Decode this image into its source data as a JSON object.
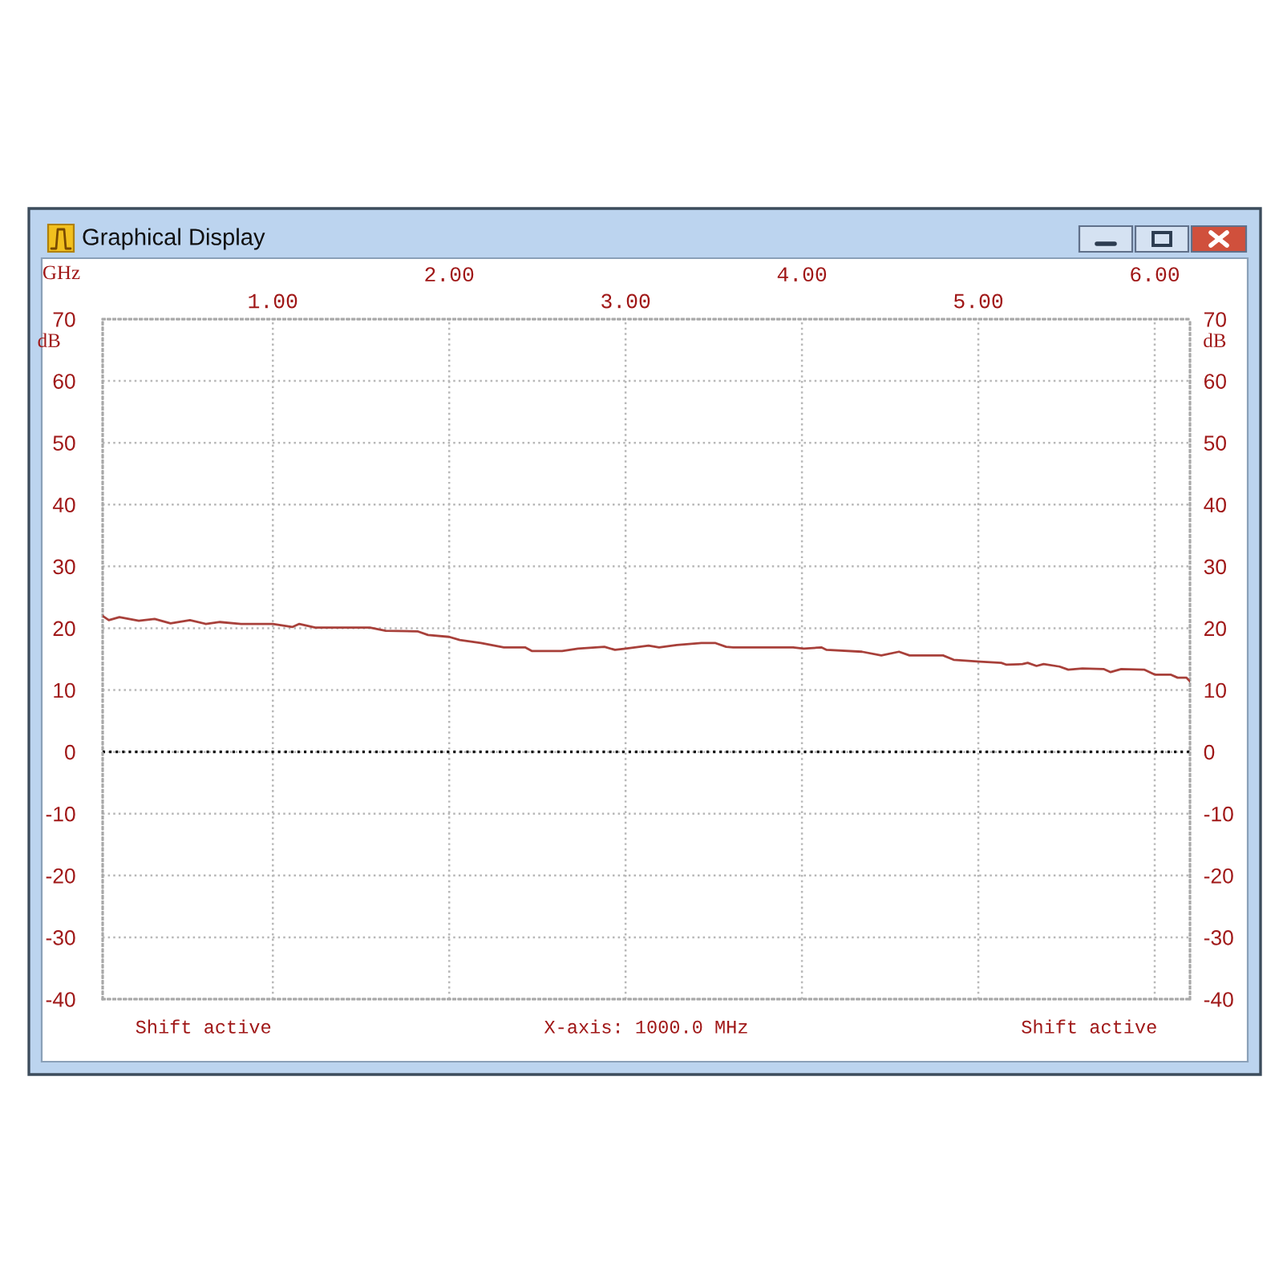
{
  "chart_data": {
    "type": "line",
    "title": "Graphical Display",
    "xlabel": "GHz",
    "ylabel": "dB",
    "y2label": "dB",
    "xlim": [
      0.035,
      6.2
    ],
    "xticks": [
      {
        "value": 1,
        "label": "1.00"
      },
      {
        "value": 2,
        "label": null
      },
      {
        "value": 3,
        "label": "3.00"
      },
      {
        "value": 4,
        "label": null
      },
      {
        "value": 5,
        "label": "5.00"
      },
      {
        "value": 6,
        "label": null
      }
    ],
    "x2lim": [
      0.035,
      6.2
    ],
    "x2ticks": [
      {
        "value": 1,
        "label": null
      },
      {
        "value": 2,
        "label": "2.00"
      },
      {
        "value": 3,
        "label": null
      },
      {
        "value": 4,
        "label": "4.00"
      },
      {
        "value": 5,
        "label": null
      },
      {
        "value": 6,
        "label": "6.00"
      }
    ],
    "ylim": [
      -40,
      70
    ],
    "yticks": [
      -40,
      -30,
      -20,
      -10,
      0,
      10,
      20,
      30,
      40,
      50,
      60,
      70
    ],
    "y2lim": [
      -40,
      70
    ],
    "y2ticks": [
      -40,
      -30,
      -20,
      -10,
      0,
      10,
      20,
      30,
      40,
      50,
      60,
      70
    ],
    "grid": true,
    "ref_lines": [
      {
        "axis": "y",
        "value": 0,
        "color": "#000000",
        "line_style": "dotted"
      }
    ],
    "annotations": [
      "Shift active",
      "X-axis: 1000.0 MHz",
      "Shift active"
    ],
    "series": [
      {
        "color": "#a8403a",
        "x": [
          0.035,
          0.07,
          0.13,
          0.24,
          0.33,
          0.42,
          0.53,
          0.62,
          0.7,
          0.82,
          1.0,
          1.11,
          1.15,
          1.24,
          1.55,
          1.64,
          1.82,
          1.88,
          2.0,
          2.06,
          2.18,
          2.31,
          2.43,
          2.47,
          2.64,
          2.73,
          2.88,
          2.94,
          3.0,
          3.13,
          3.19,
          3.29,
          3.43,
          3.51,
          3.57,
          3.61,
          3.95,
          4.01,
          4.11,
          4.14,
          4.34,
          4.45,
          4.55,
          4.61,
          4.8,
          4.86,
          5.01,
          5.13,
          5.16,
          5.25,
          5.28,
          5.33,
          5.37,
          5.46,
          5.51,
          5.59,
          5.71,
          5.75,
          5.81,
          5.94,
          6.0,
          6.09,
          6.13,
          6.18,
          6.2
        ],
        "values": [
          22.0,
          21.3,
          21.8,
          21.2,
          21.5,
          20.8,
          21.3,
          20.7,
          21.0,
          20.7,
          20.7,
          20.2,
          20.7,
          20.1,
          20.1,
          19.6,
          19.5,
          18.9,
          18.6,
          18.1,
          17.6,
          16.9,
          16.9,
          16.3,
          16.3,
          16.7,
          17.0,
          16.5,
          16.7,
          17.2,
          16.9,
          17.3,
          17.6,
          17.6,
          17.0,
          16.9,
          16.9,
          16.7,
          16.9,
          16.5,
          16.2,
          15.6,
          16.2,
          15.6,
          15.6,
          14.9,
          14.6,
          14.4,
          14.1,
          14.2,
          14.4,
          13.9,
          14.2,
          13.8,
          13.3,
          13.5,
          13.4,
          12.9,
          13.4,
          13.3,
          12.5,
          12.5,
          12.0,
          12.0,
          11.4
        ]
      }
    ]
  }
}
